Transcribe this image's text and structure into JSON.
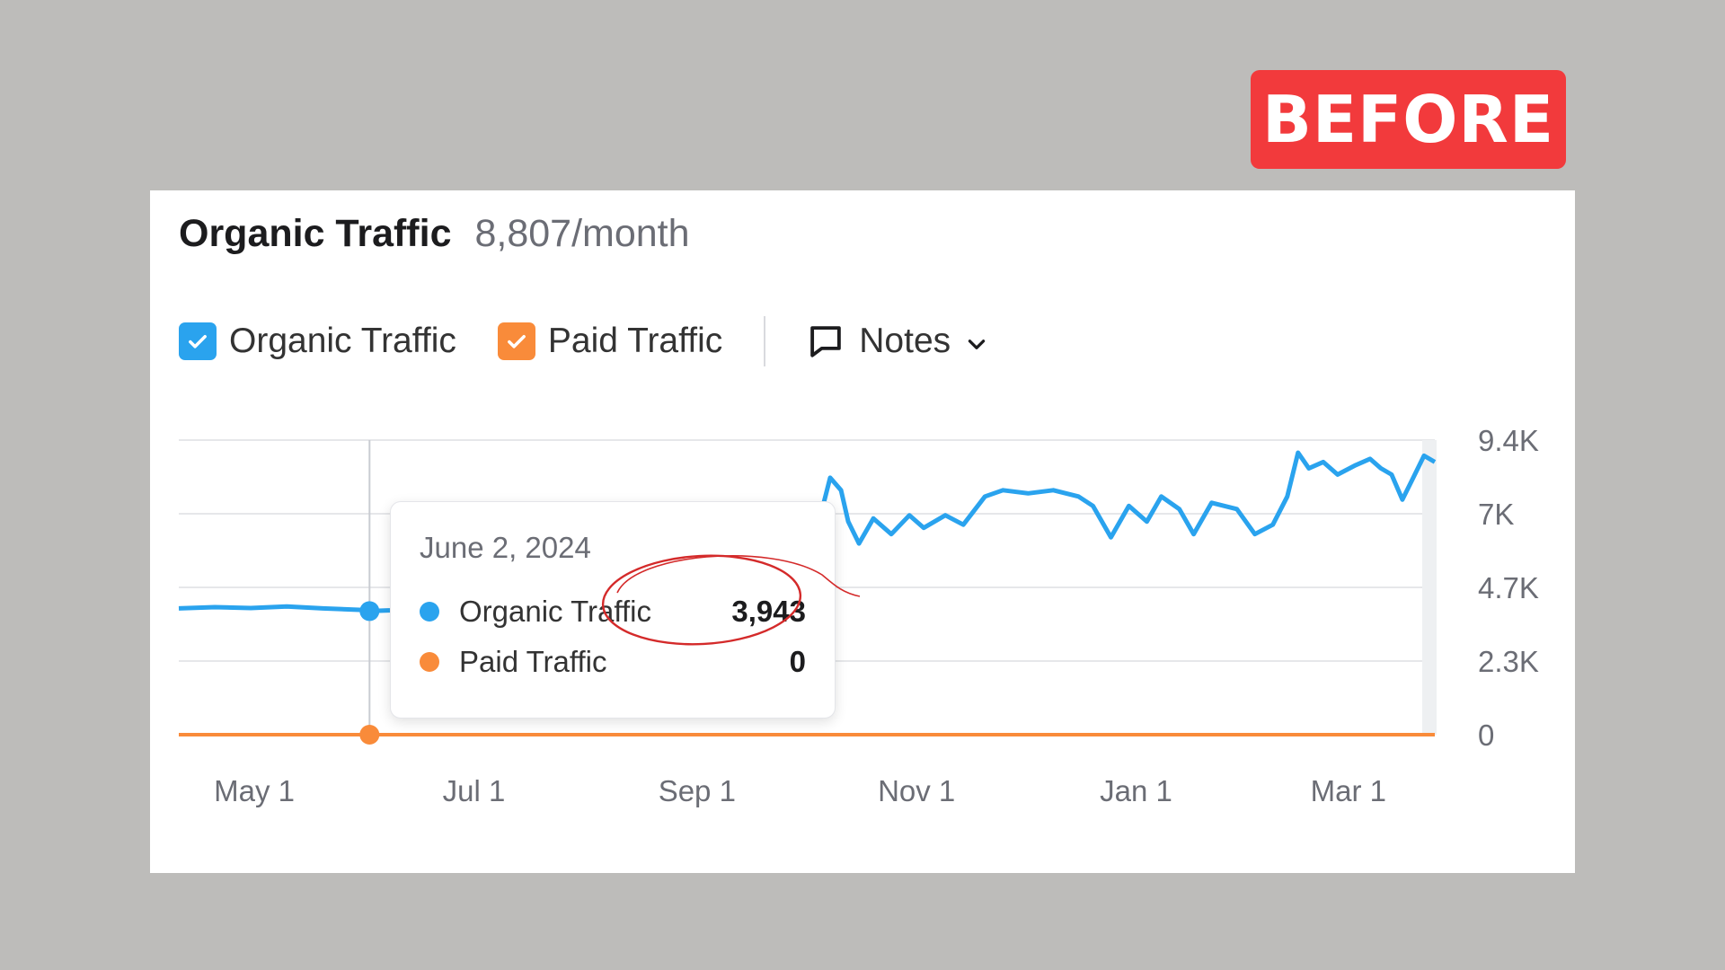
{
  "badge": {
    "label": "BEFORE",
    "color": "#f23a3c"
  },
  "header": {
    "title": "Organic Traffic",
    "subtitle": "8,807/month"
  },
  "legend": {
    "items": [
      {
        "label": "Organic Traffic",
        "color": "#2aa3ee",
        "checked": true
      },
      {
        "label": "Paid Traffic",
        "color": "#f98b3a",
        "checked": true
      }
    ],
    "notes_label": "Notes"
  },
  "tooltip": {
    "date": "June 2, 2024",
    "rows": [
      {
        "label": "Organic Traffic",
        "value": "3,943",
        "color": "#2aa3ee"
      },
      {
        "label": "Paid Traffic",
        "value": "0",
        "color": "#f98b3a"
      }
    ]
  },
  "chart_data": {
    "type": "line",
    "xlabel": "",
    "ylabel": "",
    "x_ticks": [
      "May 1",
      "Jul 1",
      "Sep 1",
      "Nov 1",
      "Jan 1",
      "Mar 1"
    ],
    "y_ticks": [
      "9.4K",
      "7K",
      "4.7K",
      "2.3K",
      "0"
    ],
    "ylim": [
      0,
      9400
    ],
    "xlim": [
      "2024-04-10",
      "2025-03-25"
    ],
    "grid": true,
    "series": [
      {
        "name": "Organic Traffic",
        "color": "#2aa3ee",
        "points": [
          [
            "2024-04-10",
            4030
          ],
          [
            "2024-04-20",
            4070
          ],
          [
            "2024-04-30",
            4040
          ],
          [
            "2024-05-10",
            4090
          ],
          [
            "2024-05-20",
            4030
          ],
          [
            "2024-05-31",
            3980
          ],
          [
            "2024-06-02",
            3943
          ],
          [
            "2024-06-08",
            3970
          ],
          [
            "2024-08-27",
            5900
          ],
          [
            "2024-09-05",
            6200
          ],
          [
            "2024-09-12",
            6000
          ],
          [
            "2024-09-18",
            6500
          ],
          [
            "2024-09-23",
            6300
          ],
          [
            "2024-09-28",
            7100
          ],
          [
            "2024-10-01",
            4300
          ],
          [
            "2024-10-04",
            6400
          ],
          [
            "2024-10-08",
            8200
          ],
          [
            "2024-10-11",
            7800
          ],
          [
            "2024-10-13",
            6800
          ],
          [
            "2024-10-16",
            6100
          ],
          [
            "2024-10-20",
            6900
          ],
          [
            "2024-10-25",
            6400
          ],
          [
            "2024-10-30",
            7000
          ],
          [
            "2024-11-03",
            6600
          ],
          [
            "2024-11-09",
            7000
          ],
          [
            "2024-11-14",
            6700
          ],
          [
            "2024-11-20",
            7600
          ],
          [
            "2024-11-25",
            7800
          ],
          [
            "2024-12-02",
            7700
          ],
          [
            "2024-12-09",
            7800
          ],
          [
            "2024-12-16",
            7600
          ],
          [
            "2024-12-20",
            7300
          ],
          [
            "2024-12-25",
            6300
          ],
          [
            "2024-12-30",
            7300
          ],
          [
            "2025-01-04",
            6800
          ],
          [
            "2025-01-08",
            7600
          ],
          [
            "2025-01-13",
            7200
          ],
          [
            "2025-01-17",
            6400
          ],
          [
            "2025-01-22",
            7400
          ],
          [
            "2025-01-29",
            7200
          ],
          [
            "2025-02-03",
            6400
          ],
          [
            "2025-02-08",
            6700
          ],
          [
            "2025-02-12",
            7600
          ],
          [
            "2025-02-15",
            9000
          ],
          [
            "2025-02-18",
            8500
          ],
          [
            "2025-02-22",
            8700
          ],
          [
            "2025-02-26",
            8300
          ],
          [
            "2025-03-03",
            8600
          ],
          [
            "2025-03-07",
            8800
          ],
          [
            "2025-03-10",
            8500
          ],
          [
            "2025-03-13",
            8300
          ],
          [
            "2025-03-16",
            7500
          ],
          [
            "2025-03-19",
            8200
          ],
          [
            "2025-03-22",
            8900
          ],
          [
            "2025-03-25",
            8700
          ]
        ]
      },
      {
        "name": "Paid Traffic",
        "color": "#f98b3a",
        "points": [
          [
            "2024-04-10",
            0
          ],
          [
            "2025-03-25",
            0
          ]
        ]
      }
    ]
  }
}
